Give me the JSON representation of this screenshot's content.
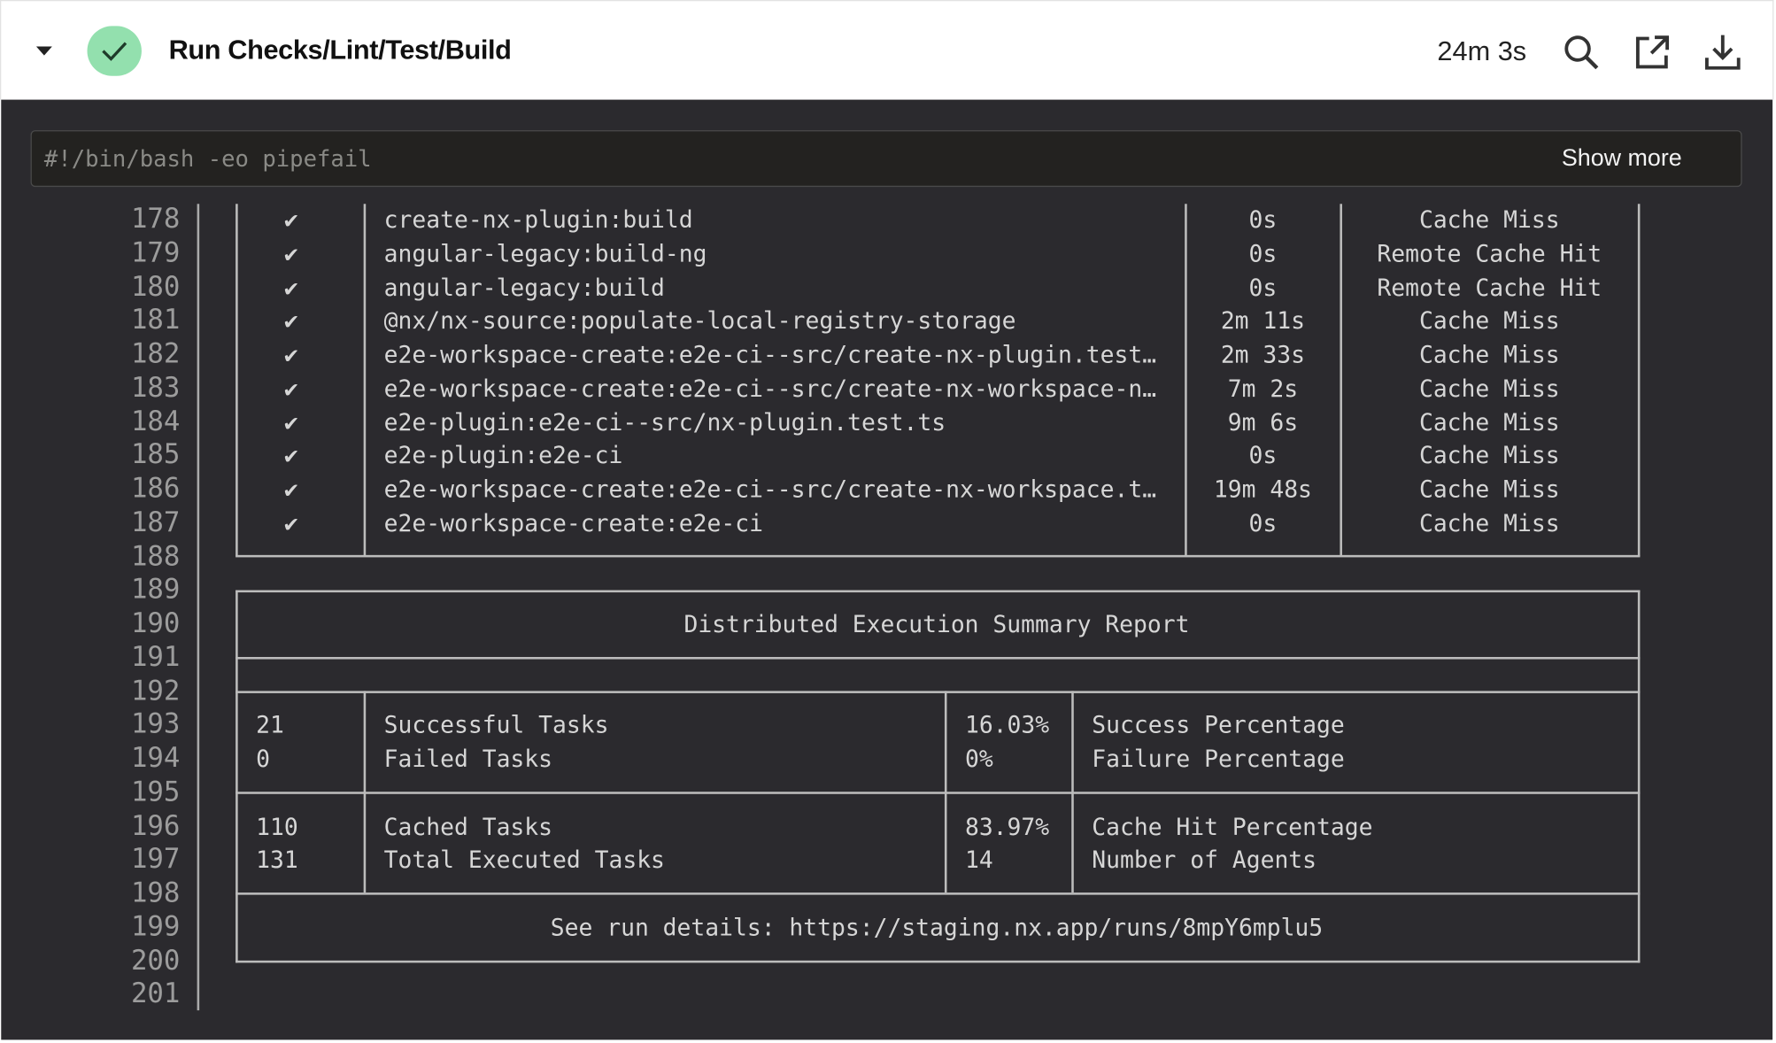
{
  "header": {
    "title": "Run Checks/Lint/Test/Build",
    "duration": "24m 3s",
    "status": "success",
    "status_color": "#93e0ae",
    "icons": [
      "chevron-down-icon",
      "check-icon",
      "search-icon",
      "external-link-icon",
      "download-icon"
    ]
  },
  "command": {
    "text": "#!/bin/bash -eo pipefail",
    "show_more_label": "Show more"
  },
  "line_numbers": [
    "178",
    "179",
    "180",
    "181",
    "182",
    "183",
    "184",
    "185",
    "186",
    "187",
    "188",
    "189",
    "190",
    "191",
    "192",
    "193",
    "194",
    "195",
    "196",
    "197",
    "198",
    "199",
    "200",
    "201"
  ],
  "tasks": [
    {
      "check": "✔",
      "name": "create-nx-plugin:build",
      "time": "0s",
      "cache": "Cache Miss"
    },
    {
      "check": "✔",
      "name": "angular-legacy:build-ng",
      "time": "0s",
      "cache": "Remote Cache Hit"
    },
    {
      "check": "✔",
      "name": "angular-legacy:build",
      "time": "0s",
      "cache": "Remote Cache Hit"
    },
    {
      "check": "✔",
      "name": "@nx/nx-source:populate-local-registry-storage",
      "time": "2m 11s",
      "cache": "Cache Miss"
    },
    {
      "check": "✔",
      "name": "e2e-workspace-create:e2e-ci--src/create-nx-plugin.test…",
      "time": "2m 33s",
      "cache": "Cache Miss"
    },
    {
      "check": "✔",
      "name": "e2e-workspace-create:e2e-ci--src/create-nx-workspace-n…",
      "time": "7m 2s",
      "cache": "Cache Miss"
    },
    {
      "check": "✔",
      "name": "e2e-plugin:e2e-ci--src/nx-plugin.test.ts",
      "time": "9m 6s",
      "cache": "Cache Miss"
    },
    {
      "check": "✔",
      "name": "e2e-plugin:e2e-ci",
      "time": "0s",
      "cache": "Cache Miss"
    },
    {
      "check": "✔",
      "name": "e2e-workspace-create:e2e-ci--src/create-nx-workspace.t…",
      "time": "19m 48s",
      "cache": "Cache Miss"
    },
    {
      "check": "✔",
      "name": "e2e-workspace-create:e2e-ci",
      "time": "0s",
      "cache": "Cache Miss"
    }
  ],
  "summary": {
    "title": "Distributed Execution Summary Report",
    "rows": [
      {
        "count": "21",
        "label": "Successful Tasks",
        "pct": "16.03%",
        "pct_label": "Success Percentage"
      },
      {
        "count": "0",
        "label": "Failed Tasks",
        "pct": "0%",
        "pct_label": "Failure Percentage"
      },
      {
        "count": "110",
        "label": "Cached Tasks",
        "pct": "83.97%",
        "pct_label": "Cache Hit Percentage"
      },
      {
        "count": "131",
        "label": "Total Executed Tasks",
        "pct": "14",
        "pct_label": "Number of Agents"
      }
    ],
    "details": "See run details: https://staging.nx.app/runs/8mpY6mplu5"
  }
}
